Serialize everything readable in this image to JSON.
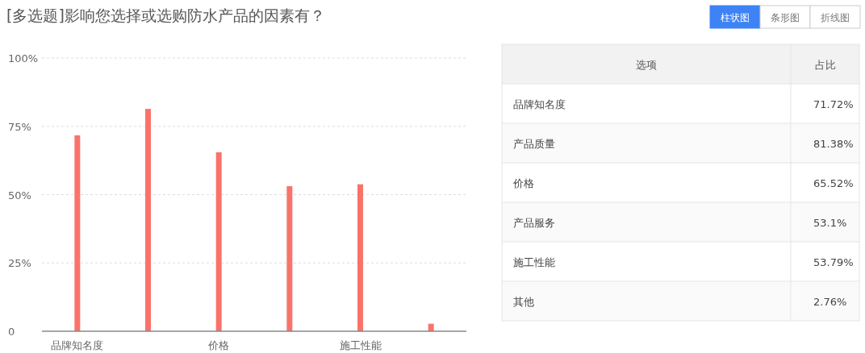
{
  "chart_data": [
    {
      "type": "bar",
      "title": "[多选题]影响您选择或选购防水产品的因素有？",
      "categories": [
        "品牌知名度",
        null,
        "价格",
        null,
        "施工性能",
        null
      ],
      "values": [
        71.72,
        81.38,
        65.52,
        53.1,
        53.79,
        2.76
      ],
      "color": "#fa736a",
      "ylim": [
        0,
        100
      ],
      "yticks": [
        {
          "value": 0,
          "label": "0"
        },
        {
          "value": 25,
          "label": "25%"
        },
        {
          "value": 50,
          "label": "50%"
        },
        {
          "value": 75,
          "label": "75%"
        },
        {
          "value": 100,
          "label": "100%"
        }
      ],
      "grid": "y",
      "annotations": [
        "柱状图",
        "条形图",
        "折线图"
      ]
    },
    {
      "type": "other",
      "categories": [
        "品牌知名度",
        "产品质量",
        "价格",
        "产品服务",
        "施工性能",
        "其他"
      ],
      "value_labels": [
        "71.72%",
        "81.38%",
        "65.52%",
        "53.1%",
        "53.79%",
        "2.76%"
      ],
      "annotations": [
        "选项",
        "占比"
      ]
    }
  ]
}
